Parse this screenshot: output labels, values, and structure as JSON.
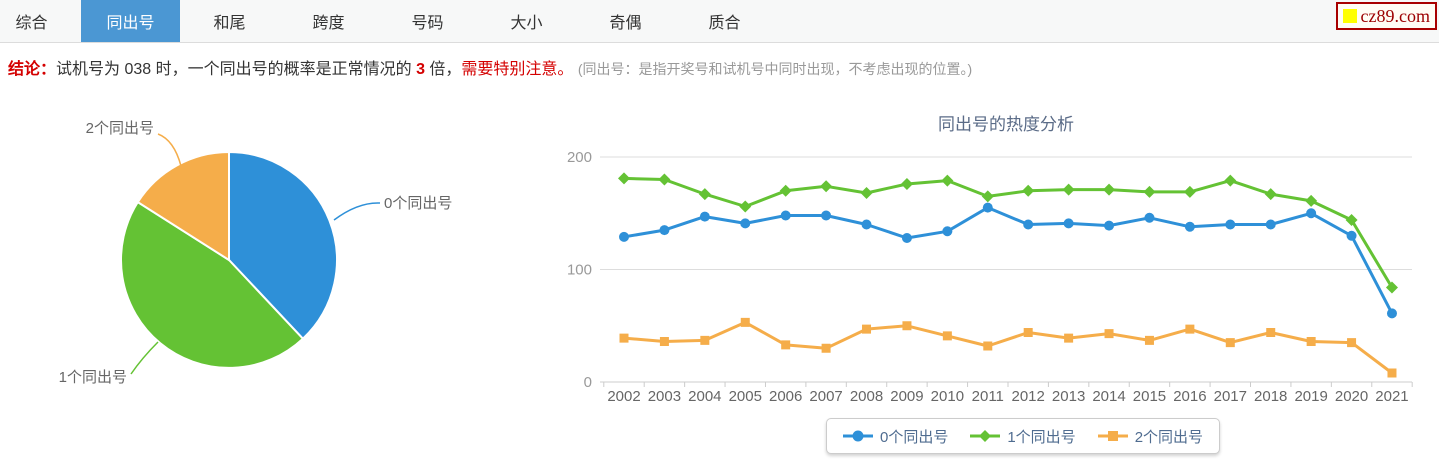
{
  "site": {
    "logo_text": "cz89.com",
    "logo_accent_color": "#ffff00",
    "logo_text_color": "#9c0000"
  },
  "tab_bar": {
    "tabs": [
      {
        "label": "综合",
        "active": false
      },
      {
        "label": "同出号",
        "active": true
      },
      {
        "label": "和尾",
        "active": false
      },
      {
        "label": "跨度",
        "active": false
      },
      {
        "label": "号码",
        "active": false
      },
      {
        "label": "大小",
        "active": false
      },
      {
        "label": "奇偶",
        "active": false
      },
      {
        "label": "质合",
        "active": false
      }
    ],
    "active_tab_color": "#4b97d3"
  },
  "conclusion": {
    "prefix": "结论：",
    "part1": "试机号为 038 时，一个同出号的概率是正常情况的 ",
    "highlight_number": "3",
    "part2": " 倍，",
    "warning": "需要特别注意。",
    "note": "(同出号：是指开奖号和试机号中同时出现，不考虑出现的位置。)"
  },
  "chart_data": [
    {
      "type": "pie",
      "labels": [
        "0个同出号",
        "1个同出号",
        "2个同出号"
      ],
      "values_percent": [
        38,
        46,
        16
      ],
      "colors": [
        "#2e90d8",
        "#64c234",
        "#f5ad4a"
      ],
      "start_angle": "top",
      "direction": "clockwise"
    },
    {
      "type": "line",
      "title": "同出号的热度分析",
      "x": [
        "2002",
        "2003",
        "2004",
        "2005",
        "2006",
        "2007",
        "2008",
        "2009",
        "2010",
        "2011",
        "2012",
        "2013",
        "2014",
        "2015",
        "2016",
        "2017",
        "2018",
        "2019",
        "2020",
        "2021"
      ],
      "series": [
        {
          "name": "0个同出号",
          "color": "#2e90d8",
          "marker": "circle",
          "values": [
            129,
            135,
            147,
            141,
            148,
            148,
            140,
            128,
            134,
            155,
            140,
            141,
            139,
            146,
            138,
            140,
            140,
            150,
            130,
            61
          ]
        },
        {
          "name": "1个同出号",
          "color": "#64c234",
          "marker": "diamond",
          "values": [
            181,
            180,
            167,
            156,
            170,
            174,
            168,
            176,
            179,
            165,
            170,
            171,
            171,
            169,
            169,
            179,
            167,
            161,
            144,
            84
          ]
        },
        {
          "name": "2个同出号",
          "color": "#f5ad4a",
          "marker": "square",
          "values": [
            39,
            36,
            37,
            53,
            33,
            30,
            47,
            50,
            41,
            32,
            44,
            39,
            43,
            37,
            47,
            35,
            44,
            36,
            35,
            8
          ]
        }
      ],
      "ylim": [
        0,
        200
      ],
      "yticks": [
        0,
        100,
        200
      ],
      "grid": true,
      "legend_position": "bottom"
    }
  ]
}
